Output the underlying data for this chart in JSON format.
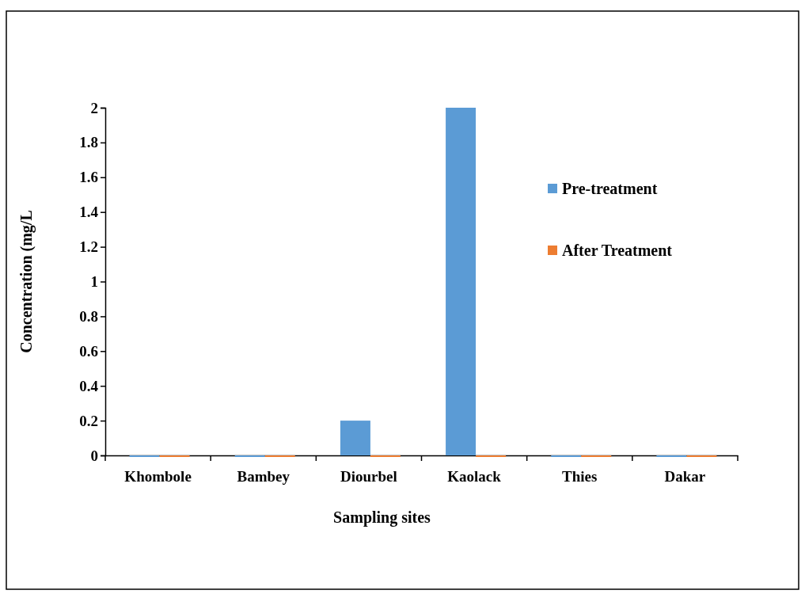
{
  "chart_data": {
    "type": "bar",
    "xlabel": "Sampling sites",
    "ylabel": "Concentration (mg/L",
    "categories": [
      "Khombole",
      "Bambey",
      "Diourbel",
      "Kaolack",
      "Thies",
      "Dakar"
    ],
    "series": [
      {
        "name": "Pre-treatment",
        "color": "#5b9bd5",
        "values": [
          0,
          0,
          0.2,
          2,
          0,
          0
        ]
      },
      {
        "name": "After Treatment",
        "color": "#ed7d31",
        "values": [
          0,
          0,
          0,
          0,
          0,
          0
        ]
      }
    ],
    "ylim": [
      0,
      2
    ],
    "yticks": [
      0,
      0.2,
      0.4,
      0.6,
      0.8,
      1,
      1.2,
      1.4,
      1.6,
      1.8,
      2
    ],
    "grid": false,
    "legend": "right"
  }
}
